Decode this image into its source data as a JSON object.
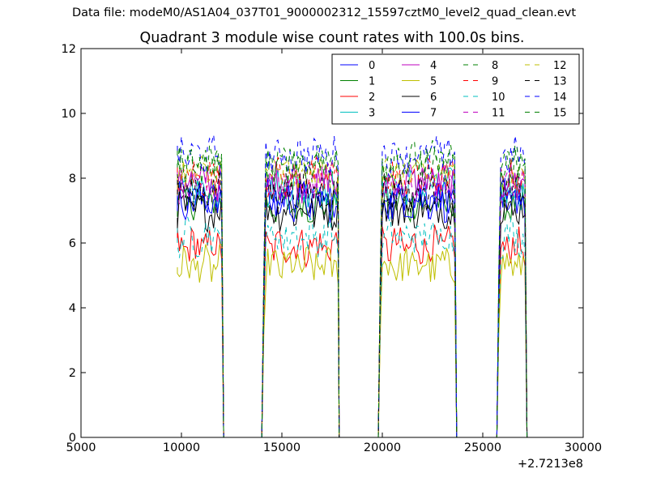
{
  "suptitle": "Data file: modeM0/AS1A04_037T01_9000002312_15597cztM0_level2_quad_clean.evt",
  "chart_data": {
    "type": "line",
    "title": "Quadrant 3 module wise count rates with 100.0s bins.",
    "xlabel": "",
    "ylabel": "",
    "x_offset_label": "+2.7213e8",
    "xlim": [
      5000,
      30000
    ],
    "ylim": [
      0,
      12
    ],
    "xticks": [
      "5000",
      "10000",
      "15000",
      "20000",
      "25000",
      "30000"
    ],
    "yticks": [
      "0",
      "2",
      "4",
      "6",
      "8",
      "10",
      "12"
    ],
    "grid": false,
    "legend_placement": "top-right",
    "legend_columns": 4,
    "segments": [
      {
        "x_start": 9800,
        "x_end": 12000
      },
      {
        "x_start": 14100,
        "x_end": 17750
      },
      {
        "x_start": 19900,
        "x_end": 23600
      },
      {
        "x_start": 25800,
        "x_end": 27100
      }
    ],
    "bin_width": 100,
    "series": [
      {
        "name": "0",
        "color": "#0000ff",
        "dash": "solid",
        "typical_rate": 7.4
      },
      {
        "name": "1",
        "color": "#008000",
        "dash": "solid",
        "typical_rate": 7.2
      },
      {
        "name": "2",
        "color": "#ff0000",
        "dash": "solid",
        "typical_rate": 5.9
      },
      {
        "name": "3",
        "color": "#00bfbf",
        "dash": "solid",
        "typical_rate": 7.7
      },
      {
        "name": "4",
        "color": "#bf00bf",
        "dash": "solid",
        "typical_rate": 7.9
      },
      {
        "name": "5",
        "color": "#bfbf00",
        "dash": "solid",
        "typical_rate": 5.3
      },
      {
        "name": "6",
        "color": "#000000",
        "dash": "solid",
        "typical_rate": 7.0
      },
      {
        "name": "7",
        "color": "#0000ff",
        "dash": "solid",
        "typical_rate": 7.3
      },
      {
        "name": "8",
        "color": "#008000",
        "dash": "dashed",
        "typical_rate": 8.4
      },
      {
        "name": "9",
        "color": "#ff0000",
        "dash": "dashed",
        "typical_rate": 8.0
      },
      {
        "name": "10",
        "color": "#00bfbf",
        "dash": "dashed",
        "typical_rate": 6.2
      },
      {
        "name": "11",
        "color": "#bf00bf",
        "dash": "dashed",
        "typical_rate": 7.8
      },
      {
        "name": "12",
        "color": "#bfbf00",
        "dash": "dashed",
        "typical_rate": 8.1
      },
      {
        "name": "13",
        "color": "#000000",
        "dash": "dashed",
        "typical_rate": 7.6
      },
      {
        "name": "14",
        "color": "#0000ff",
        "dash": "dashed",
        "typical_rate": 8.7
      },
      {
        "name": "15",
        "color": "#008000",
        "dash": "dashed",
        "typical_rate": 8.5
      }
    ]
  }
}
